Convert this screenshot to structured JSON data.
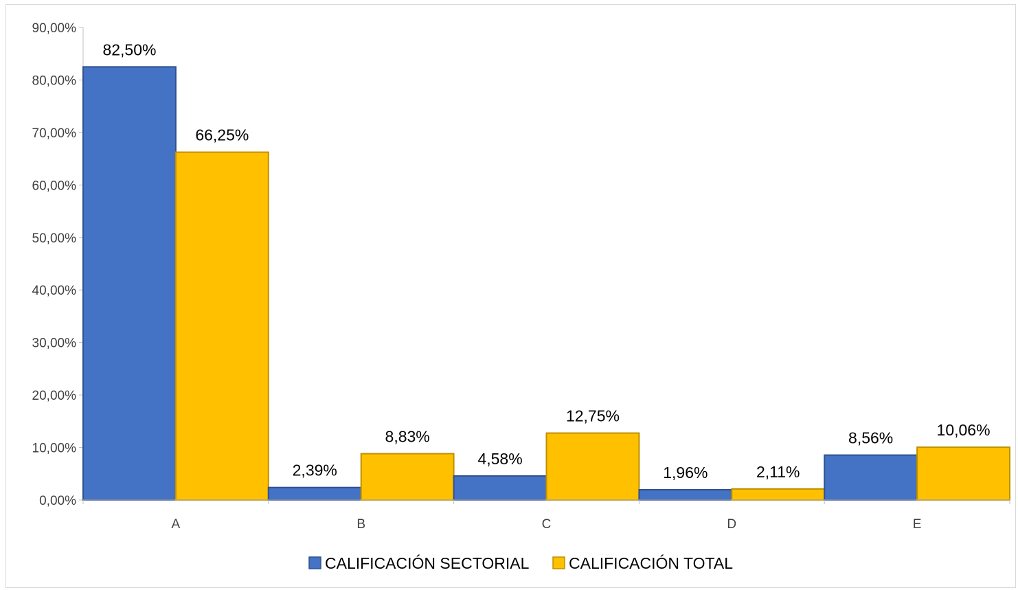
{
  "chart_data": {
    "type": "bar",
    "title": "",
    "xlabel": "",
    "ylabel": "",
    "categories": [
      "A",
      "B",
      "C",
      "D",
      "E"
    ],
    "series": [
      {
        "name": "CALIFICACIÓN SECTORIAL",
        "color": "#4472C4",
        "border": "#2F528F",
        "values": [
          82.5,
          2.39,
          4.58,
          1.96,
          8.56
        ],
        "labels": [
          "82,50%",
          "2,39%",
          "4,58%",
          "1,96%",
          "8,56%"
        ]
      },
      {
        "name": "CALIFICACIÓN TOTAL",
        "color": "#FFC000",
        "border": "#BF9000",
        "values": [
          66.25,
          8.83,
          12.75,
          2.11,
          10.06
        ],
        "labels": [
          "66,25%",
          "8,83%",
          "12,75%",
          "2,11%",
          "10,06%"
        ]
      }
    ],
    "ylim": [
      0,
      90
    ],
    "yticks": [
      0,
      10,
      20,
      30,
      40,
      50,
      60,
      70,
      80,
      90
    ],
    "ytick_labels": [
      "0,00%",
      "10,00%",
      "20,00%",
      "30,00%",
      "40,00%",
      "50,00%",
      "60,00%",
      "70,00%",
      "80,00%",
      "90,00%"
    ],
    "grid": false,
    "legend": "bottom"
  }
}
